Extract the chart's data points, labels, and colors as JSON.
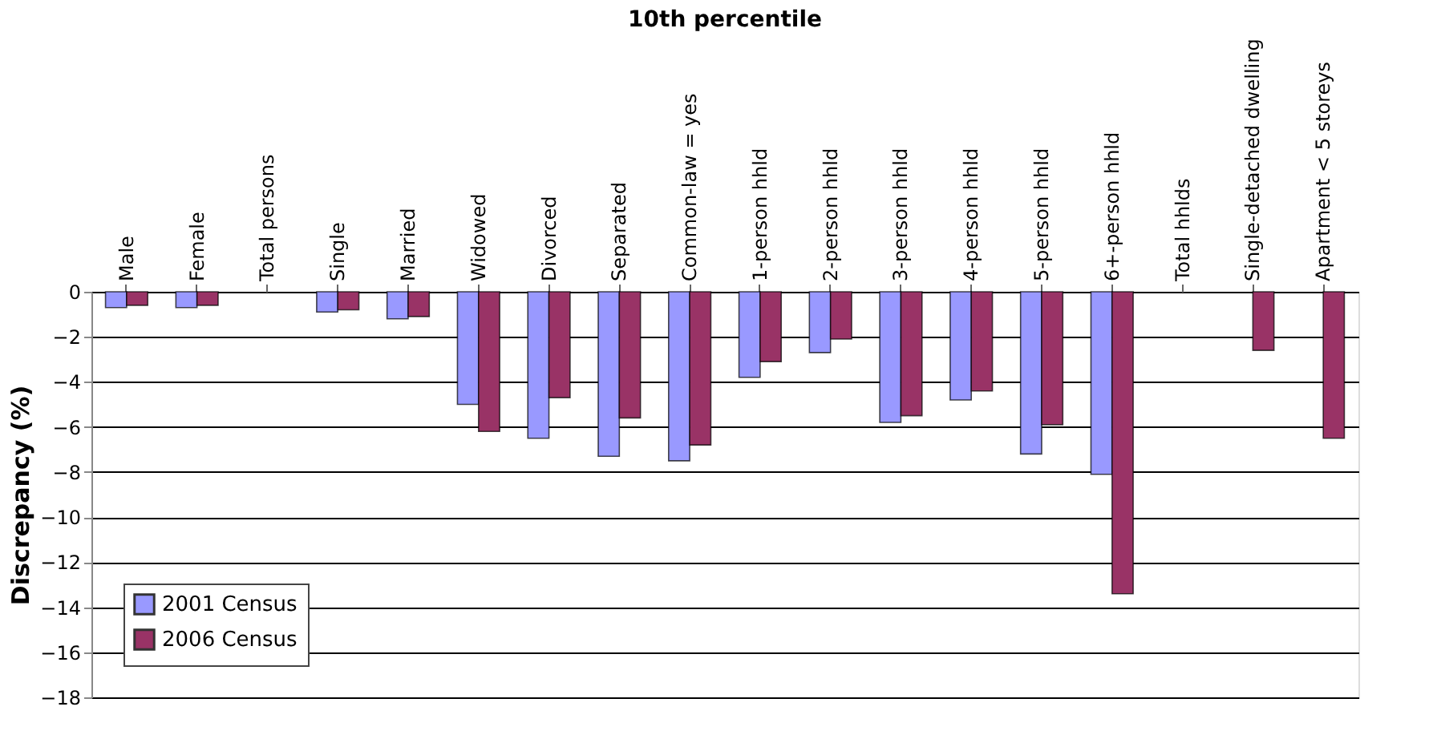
{
  "chart_data": {
    "type": "bar",
    "title": "10th percentile",
    "ylabel": "Discrepancy (%)",
    "categories": [
      "Male",
      "Female",
      "Total persons",
      "Single",
      "Married",
      "Widowed",
      "Divorced",
      "Separated",
      "Common-law = yes",
      "1-person hhld",
      "2-person hhld",
      "3-person hhld",
      "4-person hhld",
      "5-person hhld",
      "6+-person hhld",
      "Total hhlds",
      "Single-detached dwelling",
      "Apartment < 5 storeys"
    ],
    "series": [
      {
        "name": "2001 Census",
        "color": "#9999ff",
        "values": [
          -0.7,
          -0.7,
          null,
          -0.9,
          -1.2,
          -5.0,
          -6.5,
          -7.3,
          -7.5,
          -3.8,
          -2.7,
          -5.8,
          -4.8,
          -7.2,
          -8.1,
          null,
          null,
          null
        ]
      },
      {
        "name": "2006 Census",
        "color": "#993366",
        "values": [
          -0.6,
          -0.6,
          null,
          -0.8,
          -1.1,
          -6.2,
          -4.7,
          -5.6,
          -6.8,
          -3.1,
          -2.1,
          -5.5,
          -4.4,
          -5.9,
          -13.4,
          null,
          -2.6,
          -6.5
        ]
      }
    ],
    "ylim": [
      -18,
      0
    ],
    "yticks": [
      0,
      -2,
      -4,
      -6,
      -8,
      -10,
      -12,
      -14,
      -16,
      -18
    ],
    "grid": "y",
    "legend": "bottom left"
  }
}
